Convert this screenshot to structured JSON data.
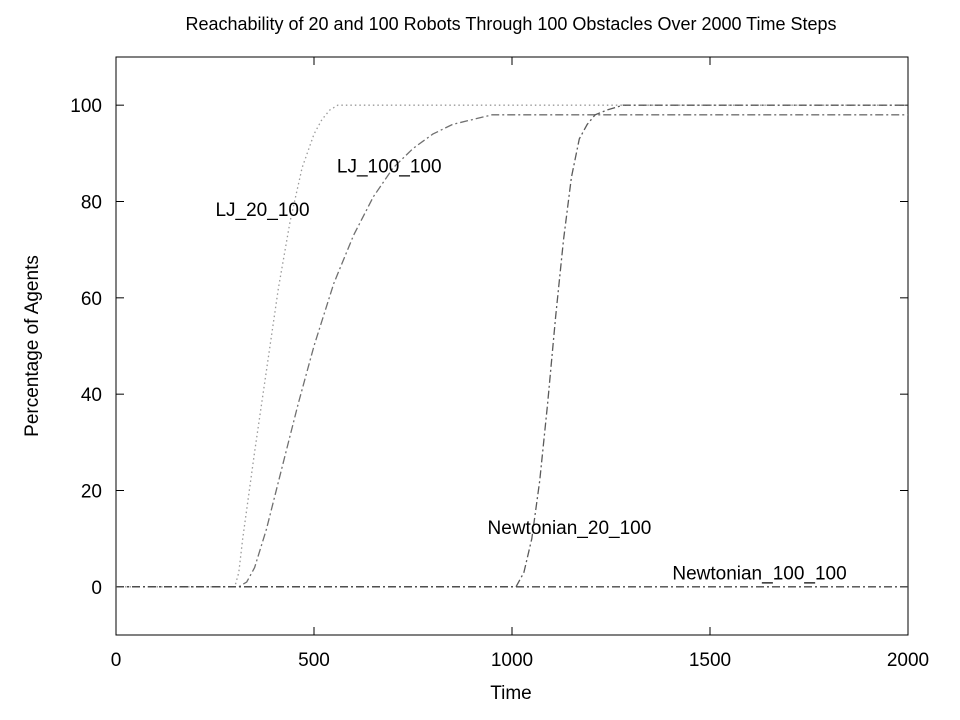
{
  "chart_data": {
    "type": "line",
    "title": "Reachability of 20 and 100 Robots Through 100 Obstacles Over 2000 Time Steps",
    "xlabel": "Time",
    "ylabel": "Percentage of Agents",
    "xlim": [
      0,
      2000
    ],
    "ylim": [
      -10,
      110
    ],
    "xticks": [
      0,
      500,
      1000,
      1500,
      2000
    ],
    "yticks": [
      0,
      20,
      40,
      60,
      80,
      100
    ],
    "grid": false,
    "series": [
      {
        "name": "LJ_20_100",
        "color": "#9a9a9a",
        "dash": "dotted",
        "x": [
          0,
          300,
          310,
          320,
          350,
          380,
          410,
          440,
          470,
          500,
          520,
          540,
          560,
          580,
          600,
          2000
        ],
        "y": [
          0,
          0,
          3,
          10,
          28,
          45,
          62,
          76,
          87,
          94,
          97,
          99,
          100,
          100,
          100,
          100
        ]
      },
      {
        "name": "LJ_100_100",
        "color": "#707070",
        "dash": "dash-dot",
        "x": [
          0,
          310,
          330,
          350,
          380,
          420,
          460,
          500,
          550,
          600,
          650,
          700,
          750,
          800,
          850,
          900,
          950,
          1000,
          1100,
          2000
        ],
        "y": [
          0,
          0,
          1,
          4,
          12,
          25,
          38,
          50,
          63,
          73,
          81,
          87,
          91,
          94,
          96,
          97,
          98,
          98,
          98,
          98
        ]
      },
      {
        "name": "Newtonian_20_100",
        "color": "#5a5a5a",
        "dash": "dash-dot",
        "x": [
          0,
          1010,
          1030,
          1050,
          1070,
          1090,
          1110,
          1130,
          1150,
          1170,
          1190,
          1210,
          1240,
          1280,
          1310,
          2000
        ],
        "y": [
          0,
          0,
          3,
          10,
          22,
          38,
          56,
          72,
          85,
          93,
          96,
          98,
          99,
          100,
          100,
          100
        ]
      },
      {
        "name": "Newtonian_100_100",
        "color": "#4a4a4a",
        "dash": "dash-dot",
        "x": [
          0,
          2000
        ],
        "y": [
          0,
          0
        ]
      }
    ],
    "labels": [
      {
        "text": "LJ_20_100",
        "x": 370,
        "y": 77
      },
      {
        "text": "LJ_100_100",
        "x": 690,
        "y": 86
      },
      {
        "text": "Newtonian_20_100",
        "x": 1145,
        "y": 11
      },
      {
        "text": "Newtonian_100_100",
        "x": 1625,
        "y": 1.5
      }
    ]
  }
}
